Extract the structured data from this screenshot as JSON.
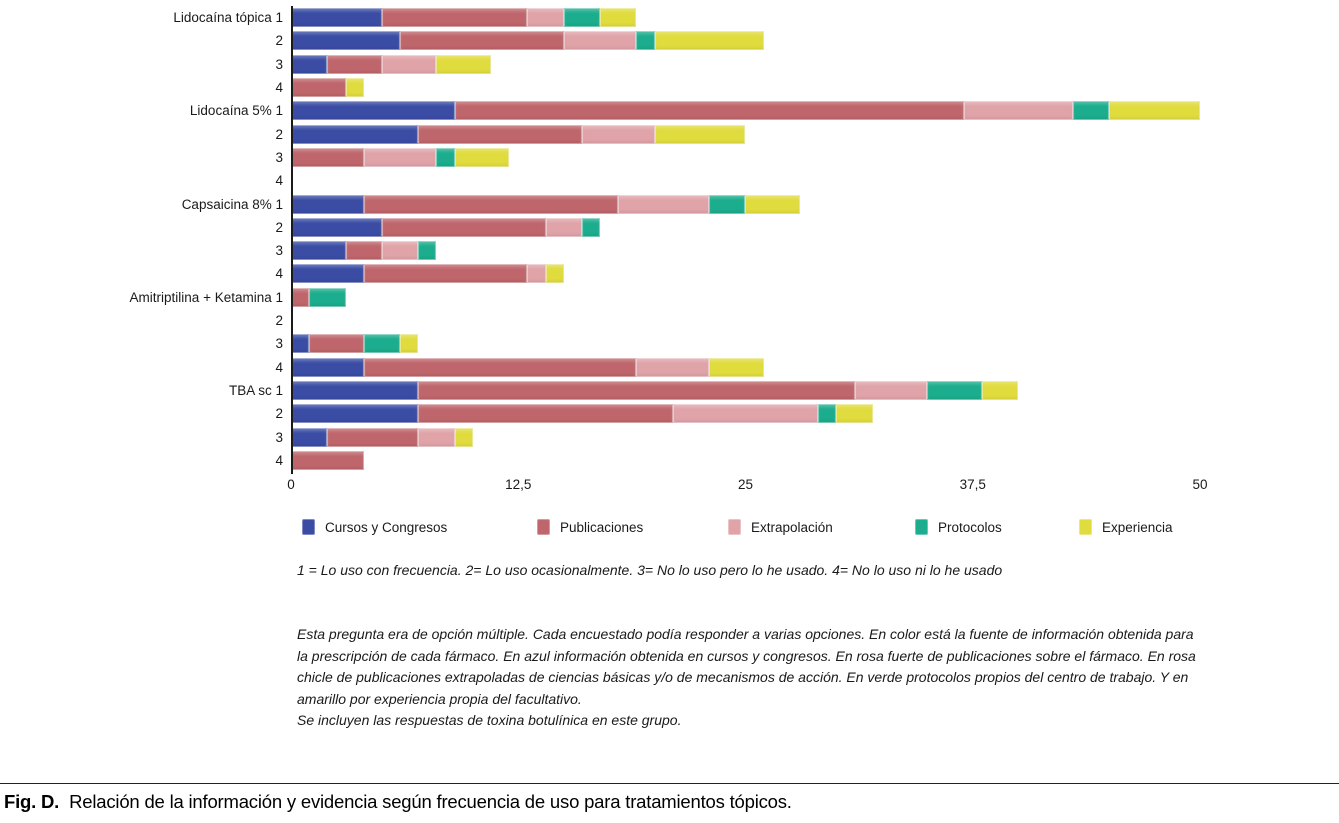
{
  "figure": {
    "caption_label": "Fig. D.",
    "caption_text": "Relación de la información y evidencia según frecuencia de uso para tratamientos tópicos."
  },
  "footnotes": {
    "scale": "1 = Lo uso con frecuencia. 2= Lo uso ocasionalmente. 3= No lo uso pero lo he usado. 4= No lo uso ni lo he usado",
    "explanation": "Esta pregunta era de opción múltiple. Cada encuestado podía responder a varias opciones. En color está la fuente de información obtenida para la prescripción de cada fármaco. En azul información obtenida en cursos y congresos. En rosa fuerte de publicaciones sobre el fármaco. En rosa chicle de publicaciones extrapoladas de ciencias básicas y/o de mecanismos de acción. En verde protocolos propios del centro de trabajo. Y en amarillo por experiencia propia del facultativo.",
    "inclusion": "Se incluyen las respuestas de toxina botulínica en este grupo."
  },
  "chart_data": {
    "type": "bar",
    "orientation": "horizontal",
    "stacked": true,
    "xlim": [
      0,
      50
    ],
    "x_ticks": [
      "0",
      "12,5",
      "25",
      "37,5",
      "50"
    ],
    "grid": false,
    "legend_position": "bottom",
    "categories": [
      "Lidocaína tópica 1",
      "2",
      "3",
      "4",
      "Lidocaína 5% 1",
      "2",
      "3",
      "4",
      "Capsaicina 8% 1",
      "2",
      "3",
      "4",
      "Amitriptilina + Ketamina 1",
      "2",
      "3",
      "4",
      "TBA sc 1",
      "2",
      "3",
      "4"
    ],
    "series": [
      {
        "name": "Cursos y Congresos",
        "color": "#3A4CA4",
        "values": [
          5,
          6,
          2,
          0,
          9,
          7,
          0,
          0,
          4,
          5,
          3,
          4,
          0,
          0,
          1,
          4,
          7,
          7,
          2,
          0
        ]
      },
      {
        "name": "Publicaciones",
        "color": "#BE666B",
        "values": [
          8,
          9,
          3,
          3,
          28,
          9,
          4,
          0,
          14,
          9,
          2,
          9,
          1,
          0,
          3,
          15,
          24,
          14,
          5,
          4
        ]
      },
      {
        "name": "Extrapolación",
        "color": "#DFA3A8",
        "values": [
          2,
          4,
          3,
          0,
          6,
          4,
          4,
          0,
          5,
          2,
          2,
          1,
          0,
          0,
          0,
          4,
          4,
          8,
          2,
          0
        ]
      },
      {
        "name": "Protocolos",
        "color": "#1BAD8D",
        "values": [
          2,
          1,
          0,
          0,
          2,
          0,
          1,
          0,
          2,
          1,
          1,
          0,
          2,
          0,
          2,
          0,
          3,
          1,
          0,
          0
        ]
      },
      {
        "name": "Experiencia",
        "color": "#E0DC3E",
        "values": [
          2,
          6,
          3,
          1,
          5,
          5,
          3,
          0,
          3,
          0,
          0,
          1,
          0,
          0,
          1,
          3,
          2,
          2,
          1,
          0
        ]
      }
    ]
  }
}
